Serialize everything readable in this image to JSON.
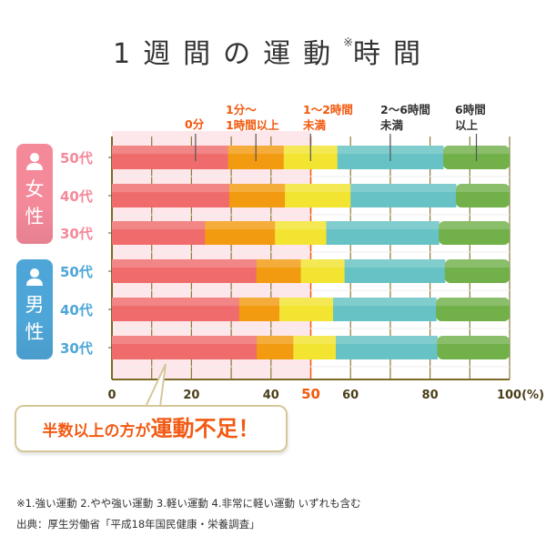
{
  "title_main": "1週間の運動",
  "title_mark": "※",
  "title_end": "時間",
  "chart_data": {
    "type": "bar",
    "orientation": "horizontal",
    "stacked": true,
    "categories": [
      "50代",
      "40代",
      "30代",
      "50代",
      "40代",
      "30代"
    ],
    "groups": [
      {
        "label": "女性",
        "color": "#f4899a",
        "rows": [
          0,
          1,
          2
        ]
      },
      {
        "label": "男性",
        "color": "#4ea6d8",
        "rows": [
          3,
          4,
          5
        ]
      }
    ],
    "series": [
      {
        "name": "0分",
        "color": "#f06b6b",
        "values": [
          29.2,
          29.5,
          23.4,
          36.3,
          32.0,
          36.4
        ]
      },
      {
        "name": "1分〜1時間以上",
        "color": "#f29a10",
        "values": [
          14.0,
          14.0,
          17.6,
          11.2,
          10.1,
          9.2
        ]
      },
      {
        "name": "1〜2時間未満",
        "color": "#f2e430",
        "values": [
          13.5,
          16.5,
          12.9,
          11.0,
          13.5,
          10.7
        ]
      },
      {
        "name": "2〜6時間未満",
        "color": "#66c2c4",
        "values": [
          26.6,
          26.5,
          28.3,
          25.2,
          25.9,
          25.5
        ]
      },
      {
        "name": "6時間以上",
        "color": "#72b04a",
        "values": [
          16.7,
          13.5,
          17.8,
          16.3,
          18.5,
          18.2
        ]
      }
    ],
    "legend_lines": [
      [
        "0分"
      ],
      [
        "1分〜",
        "1時間以上"
      ],
      [
        "1〜2時間",
        "未満"
      ],
      [
        "2〜6時間",
        "未満"
      ],
      [
        "6時間",
        "以上"
      ]
    ],
    "legend_colors": [
      "#f2580c",
      "#f2580c",
      "#f2580c",
      "#333333",
      "#333333"
    ],
    "xticks": [
      "0",
      "20",
      "40",
      "50",
      "60",
      "80",
      "100(%)"
    ],
    "xtick_values": [
      0,
      20,
      40,
      50,
      60,
      80,
      100
    ],
    "highlight_tick": 50,
    "xlim": [
      0,
      100
    ],
    "grid": true
  },
  "callout": {
    "small": "半数以上の方が",
    "big": "運動不足！"
  },
  "notes": [
    "※1.強い運動 2.やや強い運動 3.軽い運動 4.非常に軽い運動 いずれも含む",
    "出典：厚生労働省「平成18年国民健康・栄養調査」"
  ]
}
